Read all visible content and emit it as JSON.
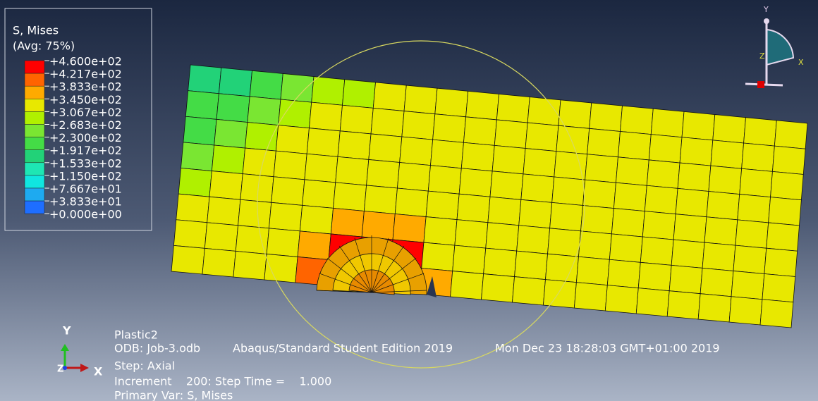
{
  "legend": {
    "title": "S, Mises",
    "subtitle": "(Avg: 75%)",
    "labels": [
      "+4.600e+02",
      "+4.217e+02",
      "+3.833e+02",
      "+3.450e+02",
      "+3.067e+02",
      "+2.683e+02",
      "+2.300e+02",
      "+1.917e+02",
      "+1.533e+02",
      "+1.150e+02",
      "+7.667e+01",
      "+3.833e+01",
      "+0.000e+00"
    ]
  },
  "triad_top": {
    "y": "Y",
    "x": "X",
    "z": "Z"
  },
  "triad_bottom": {
    "y": "Y",
    "x": "X",
    "z": "Z"
  },
  "info": {
    "title": "Plastic2",
    "odb": "ODB: Job-3.odb",
    "product": "Abaqus/Standard Student Edition 2019",
    "date": "Mon Dec 23 18:28:03 GMT+01:00 2019",
    "step": "Step: Axial",
    "increment": "Increment    200: Step Time =    1.000",
    "primary_var": "Primary Var: S, Mises"
  }
}
